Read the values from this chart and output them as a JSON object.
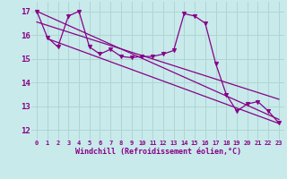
{
  "bg_color": "#c8eaea",
  "grid_color": "#b0d4d4",
  "line_color": "#880088",
  "xlabel": "Windchill (Refroidissement éolien,°C)",
  "ylabel_ticks": [
    12,
    13,
    14,
    15,
    16,
    17
  ],
  "xtick_labels": [
    "0",
    "1",
    "2",
    "3",
    "4",
    "5",
    "6",
    "7",
    "8",
    "9",
    "10",
    "11",
    "12",
    "13",
    "14",
    "15",
    "16",
    "17",
    "18",
    "19",
    "20",
    "21",
    "22",
    "23"
  ],
  "xlim": [
    -0.5,
    23.5
  ],
  "ylim": [
    11.6,
    17.4
  ],
  "data_line": [
    17.0,
    15.9,
    15.5,
    16.8,
    17.0,
    15.5,
    15.2,
    15.4,
    15.1,
    15.05,
    15.1,
    15.1,
    15.2,
    15.35,
    16.9,
    16.8,
    16.5,
    14.8,
    13.5,
    12.8,
    13.1,
    13.2,
    12.8,
    12.3
  ],
  "regression_lines": [
    {
      "x0": 0,
      "y0": 17.0,
      "x1": 23,
      "y1": 12.45
    },
    {
      "x0": 0,
      "y0": 16.55,
      "x1": 23,
      "y1": 13.3
    },
    {
      "x0": 1,
      "y0": 15.85,
      "x1": 23,
      "y1": 12.28
    }
  ]
}
